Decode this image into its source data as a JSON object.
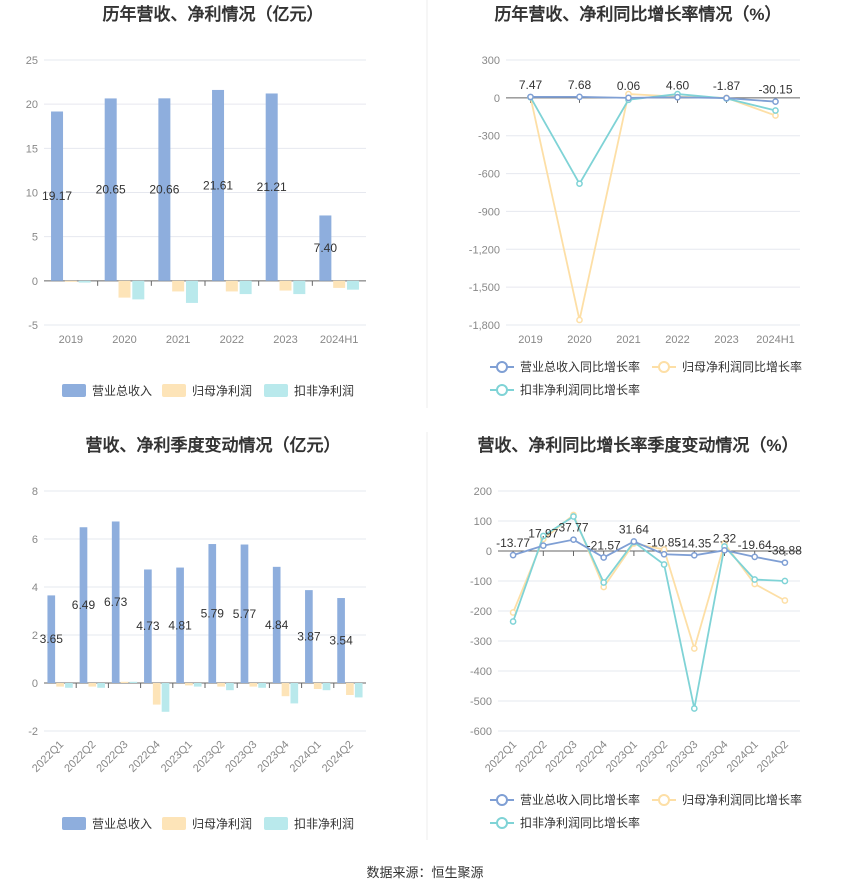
{
  "source": "数据来源：恒生聚源",
  "chart_data": [
    {
      "id": "annual-bar",
      "type": "bar",
      "title": "历年营收、净利情况（亿元）",
      "categories": [
        "2019",
        "2020",
        "2021",
        "2022",
        "2023",
        "2024H1"
      ],
      "ylim": [
        -5,
        25
      ],
      "yticks": [
        -5,
        0,
        5,
        10,
        15,
        20,
        25
      ],
      "grid": true,
      "legend": "bottom",
      "series": [
        {
          "name": "营业总收入",
          "color": "#8eaedd",
          "values": [
            19.17,
            20.65,
            20.66,
            21.61,
            21.21,
            7.4
          ],
          "labels": [
            "19.17",
            "20.65",
            "20.66",
            "21.61",
            "21.21",
            "7.40"
          ]
        },
        {
          "name": "归母净利润",
          "color": "#fde4b8",
          "values": [
            -0.1,
            -1.9,
            -1.2,
            -1.2,
            -1.1,
            -0.8
          ]
        },
        {
          "name": "扣非净利润",
          "color": "#b9e9ec",
          "values": [
            -0.2,
            -2.1,
            -2.5,
            -1.5,
            -1.5,
            -1.0
          ]
        }
      ]
    },
    {
      "id": "annual-line",
      "type": "line",
      "title": "历年营收、净利同比增长率情况（%）",
      "categories": [
        "2019",
        "2020",
        "2021",
        "2022",
        "2023",
        "2024H1"
      ],
      "ylim": [
        -1800,
        300
      ],
      "yticks": [
        300,
        0,
        -300,
        -600,
        -900,
        -1200,
        -1500,
        -1800
      ],
      "ytick_labels": [
        "300",
        "0",
        "-300",
        "-600",
        "-900",
        "-1,200",
        "-1,500",
        "-1,800"
      ],
      "grid": true,
      "legend": "bottom",
      "series": [
        {
          "name": "营业总收入同比增长率",
          "color": "#7f9fd4",
          "values": [
            7.47,
            7.68,
            0.06,
            4.6,
            -1.87,
            -30.15
          ],
          "labels": [
            "7.47",
            "7.68",
            "0.06",
            "4.60",
            "-1.87",
            "-30.15"
          ]
        },
        {
          "name": "归母净利润同比增长率",
          "color": "#fddfa6",
          "values": [
            5,
            -1760,
            30,
            10,
            0,
            -140
          ]
        },
        {
          "name": "扣非净利润同比增长率",
          "color": "#7fd3d6",
          "values": [
            5,
            -680,
            -15,
            30,
            -5,
            -100
          ]
        }
      ]
    },
    {
      "id": "quarterly-bar",
      "type": "bar",
      "title": "营收、净利季度变动情况（亿元）",
      "categories": [
        "2022Q1",
        "2022Q2",
        "2022Q3",
        "2022Q4",
        "2023Q1",
        "2023Q2",
        "2023Q3",
        "2023Q4",
        "2024Q1",
        "2024Q2"
      ],
      "ylim": [
        -2,
        8
      ],
      "yticks": [
        -2,
        0,
        2,
        4,
        6,
        8
      ],
      "grid": true,
      "legend": "bottom",
      "series": [
        {
          "name": "营业总收入",
          "color": "#8eaedd",
          "values": [
            3.65,
            6.49,
            6.73,
            4.73,
            4.81,
            5.79,
            5.77,
            4.84,
            3.87,
            3.54
          ],
          "labels": [
            "3.65",
            "6.49",
            "6.73",
            "4.73",
            "4.81",
            "5.79",
            "5.77",
            "4.84",
            "3.87",
            "3.54"
          ]
        },
        {
          "name": "归母净利润",
          "color": "#fde4b8",
          "values": [
            -0.15,
            -0.15,
            0.05,
            -0.9,
            -0.1,
            -0.15,
            -0.15,
            -0.55,
            -0.25,
            -0.5
          ]
        },
        {
          "name": "扣非净利润",
          "color": "#b9e9ec",
          "values": [
            -0.2,
            -0.2,
            0.05,
            -1.2,
            -0.15,
            -0.3,
            -0.2,
            -0.85,
            -0.3,
            -0.6
          ]
        }
      ]
    },
    {
      "id": "quarterly-line",
      "type": "line",
      "title": "营收、净利同比增长率季度变动情况（%）",
      "categories": [
        "2022Q1",
        "2022Q2",
        "2022Q3",
        "2022Q4",
        "2023Q1",
        "2023Q2",
        "2023Q3",
        "2023Q4",
        "2024Q1",
        "2024Q2"
      ],
      "ylim": [
        -600,
        200
      ],
      "yticks": [
        200,
        100,
        0,
        -100,
        -200,
        -300,
        -400,
        -500,
        -600
      ],
      "ytick_labels": [
        "200",
        "100",
        "0",
        "-100",
        "-200",
        "-300",
        "-400",
        "-500",
        "-600"
      ],
      "grid": true,
      "legend": "bottom",
      "series": [
        {
          "name": "营业总收入同比增长率",
          "color": "#7f9fd4",
          "values": [
            -13.77,
            17.97,
            37.77,
            -21.57,
            31.64,
            -10.85,
            -14.35,
            2.32,
            -19.64,
            -38.88
          ],
          "labels": [
            "-13.77",
            "17.97",
            "37.77",
            "-21.57",
            "31.64",
            "-10.85",
            "-14.35",
            "2.32",
            "-19.64",
            "-38.88"
          ]
        },
        {
          "name": "归母净利润同比增长率",
          "color": "#fddfa6",
          "values": [
            -205,
            40,
            120,
            -120,
            25,
            5,
            -325,
            25,
            -110,
            -165
          ]
        },
        {
          "name": "扣非净利润同比增长率",
          "color": "#7fd3d6",
          "values": [
            -235,
            50,
            115,
            -105,
            30,
            -45,
            -525,
            15,
            -95,
            -100
          ]
        }
      ]
    }
  ]
}
